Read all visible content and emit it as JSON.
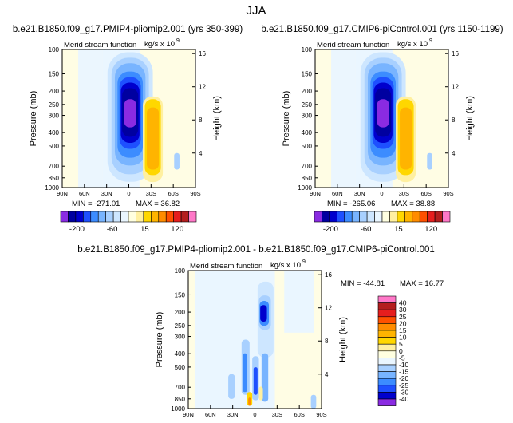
{
  "season": "JJA",
  "chart_data": [
    {
      "type": "contourf",
      "title": "b.e21.B1850.f09_g17.PMIP4-pliomip2.001 (yrs 350-399)",
      "left_string": "Merid stream function",
      "right_string": "kg/s x 10",
      "right_string_exp": "9",
      "xlabel": "",
      "ylabel": "Pressure (mb)",
      "ylabel_right": "Height (km)",
      "x_ticks": [
        "90N",
        "60N",
        "30N",
        "0",
        "30S",
        "60S",
        "90S"
      ],
      "y_ticks": [
        "100",
        "150",
        "200",
        "250",
        "300",
        "400",
        "500",
        "700",
        "850",
        "1000"
      ],
      "y_right_ticks": [
        "16",
        "12",
        "8",
        "4"
      ],
      "min_label": "MIN = -271.01",
      "max_label": "MAX =  36.82",
      "min": -271.01,
      "max": 36.82,
      "colorbar_labels": [
        "-200",
        "-60",
        "15",
        "120"
      ],
      "colorbar_colors": [
        "#8a2be2",
        "#0000a0",
        "#0000cd",
        "#1e50ff",
        "#3c8cff",
        "#78b4ff",
        "#a8d0ff",
        "#cde6ff",
        "#eaf6ff",
        "#ffffe0",
        "#fff0a0",
        "#ffd700",
        "#ffb400",
        "#ff8c00",
        "#ff5000",
        "#e61e1e",
        "#b41e1e",
        "#ff78c8"
      ]
    },
    {
      "type": "contourf",
      "title": "b.e21.B1850.f09_g17.CMIP6-piControl.001 (yrs 1150-1199)",
      "left_string": "Merid stream function",
      "right_string": "kg/s x 10",
      "right_string_exp": "9",
      "xlabel": "",
      "ylabel": "Pressure (mb)",
      "ylabel_right": "Height (km)",
      "x_ticks": [
        "90N",
        "60N",
        "30N",
        "0",
        "30S",
        "60S",
        "90S"
      ],
      "y_ticks": [
        "100",
        "150",
        "200",
        "250",
        "300",
        "400",
        "500",
        "700",
        "850",
        "1000"
      ],
      "y_right_ticks": [
        "16",
        "12",
        "8",
        "4"
      ],
      "min_label": "MIN = -265.06",
      "max_label": "MAX =  38.88",
      "min": -265.06,
      "max": 38.88,
      "colorbar_labels": [
        "-200",
        "-60",
        "15",
        "120"
      ],
      "colorbar_colors": [
        "#8a2be2",
        "#0000a0",
        "#0000cd",
        "#1e50ff",
        "#3c8cff",
        "#78b4ff",
        "#a8d0ff",
        "#cde6ff",
        "#eaf6ff",
        "#ffffe0",
        "#fff0a0",
        "#ffd700",
        "#ffb400",
        "#ff8c00",
        "#ff5000",
        "#e61e1e",
        "#b41e1e",
        "#ff78c8"
      ]
    },
    {
      "type": "contourf",
      "title": "b.e21.B1850.f09_g17.PMIP4-pliomip2.001 - b.e21.B1850.f09_g17.CMIP6-piControl.001",
      "left_string": "Merid stream function",
      "right_string": "kg/s x 10",
      "right_string_exp": "9",
      "xlabel": "",
      "ylabel": "Pressure (mb)",
      "ylabel_right": "Height (km)",
      "x_ticks": [
        "90N",
        "60N",
        "30N",
        "0",
        "30S",
        "60S",
        "90S"
      ],
      "y_ticks": [
        "100",
        "150",
        "200",
        "250",
        "300",
        "400",
        "500",
        "700",
        "850",
        "1000"
      ],
      "y_right_ticks": [
        "16",
        "12",
        "8",
        "4"
      ],
      "min_label": "MIN = -44.81",
      "max_label": "MAX =  16.77",
      "min": -44.81,
      "max": 16.77,
      "colorbar_labels": [
        "40",
        "30",
        "25",
        "20",
        "15",
        "10",
        "5",
        "0",
        "-5",
        "-10",
        "-15",
        "-20",
        "-25",
        "-30",
        "-40"
      ],
      "colorbar_colors": [
        "#ff78c8",
        "#b41e1e",
        "#e61e1e",
        "#ff5000",
        "#ff8c00",
        "#ffb400",
        "#ffd700",
        "#fff0a0",
        "#ffffe0",
        "#eaf6ff",
        "#a8d0ff",
        "#78b4ff",
        "#3c8cff",
        "#1e50ff",
        "#0000cd",
        "#8a2be2"
      ]
    }
  ]
}
